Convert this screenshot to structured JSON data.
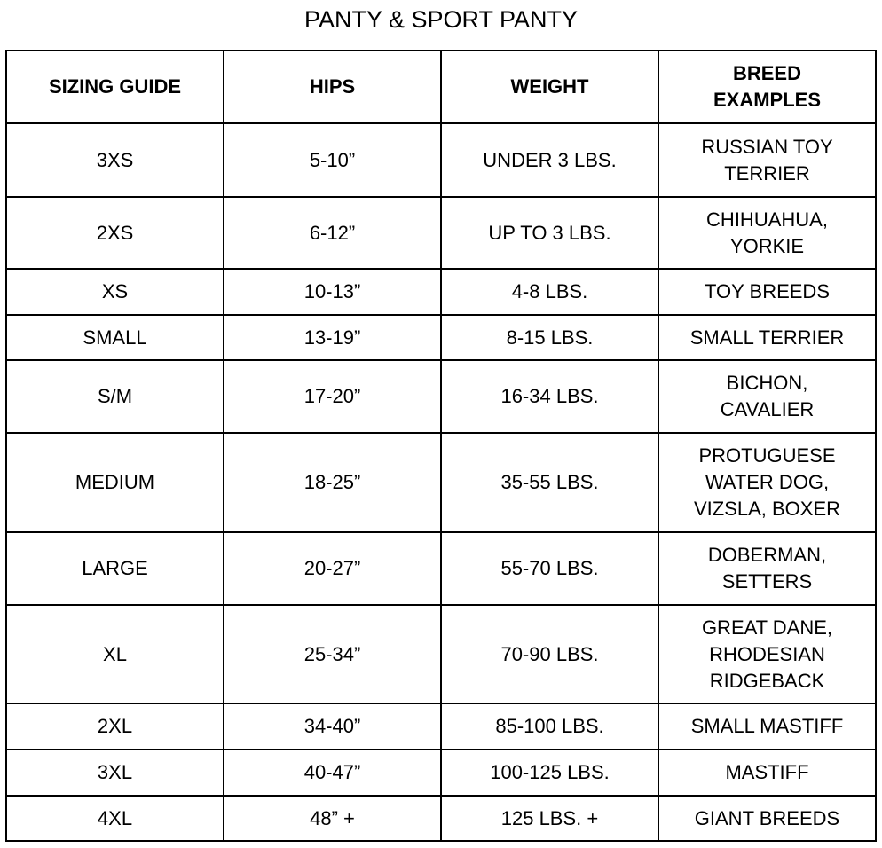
{
  "title": "PANTY & SPORT PANTY",
  "headers": [
    "SIZING GUIDE",
    "HIPS",
    "WEIGHT",
    "BREED\nEXAMPLES"
  ],
  "rows": [
    [
      "3XS",
      "5-10”",
      "UNDER 3 LBS.",
      "RUSSIAN TOY\nTERRIER"
    ],
    [
      "2XS",
      "6-12”",
      "UP TO 3 LBS.",
      "CHIHUAHUA,\nYORKIE"
    ],
    [
      "XS",
      "10-13”",
      "4-8 LBS.",
      "TOY BREEDS"
    ],
    [
      "SMALL",
      "13-19”",
      "8-15 LBS.",
      "SMALL TERRIER"
    ],
    [
      "S/M",
      "17-20”",
      "16-34 LBS.",
      "BICHON,\nCAVALIER"
    ],
    [
      "MEDIUM",
      "18-25”",
      "35-55 LBS.",
      "PROTUGUESE\nWATER DOG,\nVIZSLA, BOXER"
    ],
    [
      "LARGE",
      "20-27”",
      "55-70 LBS.",
      "DOBERMAN,\nSETTERS"
    ],
    [
      "XL",
      "25-34”",
      "70-90 LBS.",
      "GREAT DANE,\nRHODESIAN\nRIDGEBACK"
    ],
    [
      "2XL",
      "34-40”",
      "85-100 LBS.",
      "SMALL MASTIFF"
    ],
    [
      "3XL",
      "40-47”",
      "100-125 LBS.",
      "MASTIFF"
    ],
    [
      "4XL",
      "48” +",
      "125 LBS. +",
      "GIANT BREEDS"
    ]
  ]
}
